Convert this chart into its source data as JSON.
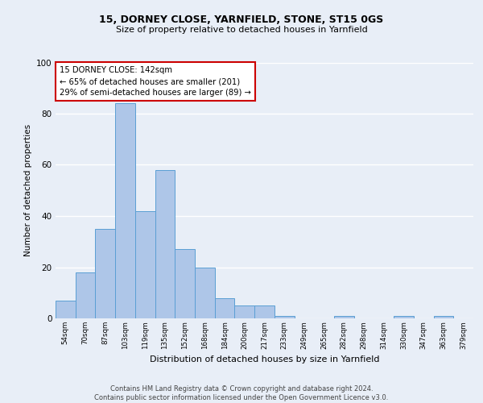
{
  "title1": "15, DORNEY CLOSE, YARNFIELD, STONE, ST15 0GS",
  "title2": "Size of property relative to detached houses in Yarnfield",
  "xlabel": "Distribution of detached houses by size in Yarnfield",
  "ylabel": "Number of detached properties",
  "categories": [
    "54sqm",
    "70sqm",
    "87sqm",
    "103sqm",
    "119sqm",
    "135sqm",
    "152sqm",
    "168sqm",
    "184sqm",
    "200sqm",
    "217sqm",
    "233sqm",
    "249sqm",
    "265sqm",
    "282sqm",
    "298sqm",
    "314sqm",
    "330sqm",
    "347sqm",
    "363sqm",
    "379sqm"
  ],
  "values": [
    7,
    18,
    35,
    84,
    42,
    58,
    27,
    20,
    8,
    5,
    5,
    1,
    0,
    0,
    1,
    0,
    0,
    1,
    0,
    1,
    0
  ],
  "bar_color": "#aec6e8",
  "bar_edge_color": "#5a9fd4",
  "annotation_line1": "15 DORNEY CLOSE: 142sqm",
  "annotation_line2": "← 65% of detached houses are smaller (201)",
  "annotation_line3": "29% of semi-detached houses are larger (89) →",
  "annotation_box_color": "#ffffff",
  "annotation_box_edge": "#cc0000",
  "ylim": [
    0,
    100
  ],
  "yticks": [
    0,
    20,
    40,
    60,
    80,
    100
  ],
  "background_color": "#e8eef7",
  "grid_color": "#ffffff",
  "footer": "Contains HM Land Registry data © Crown copyright and database right 2024.\nContains public sector information licensed under the Open Government Licence v3.0."
}
